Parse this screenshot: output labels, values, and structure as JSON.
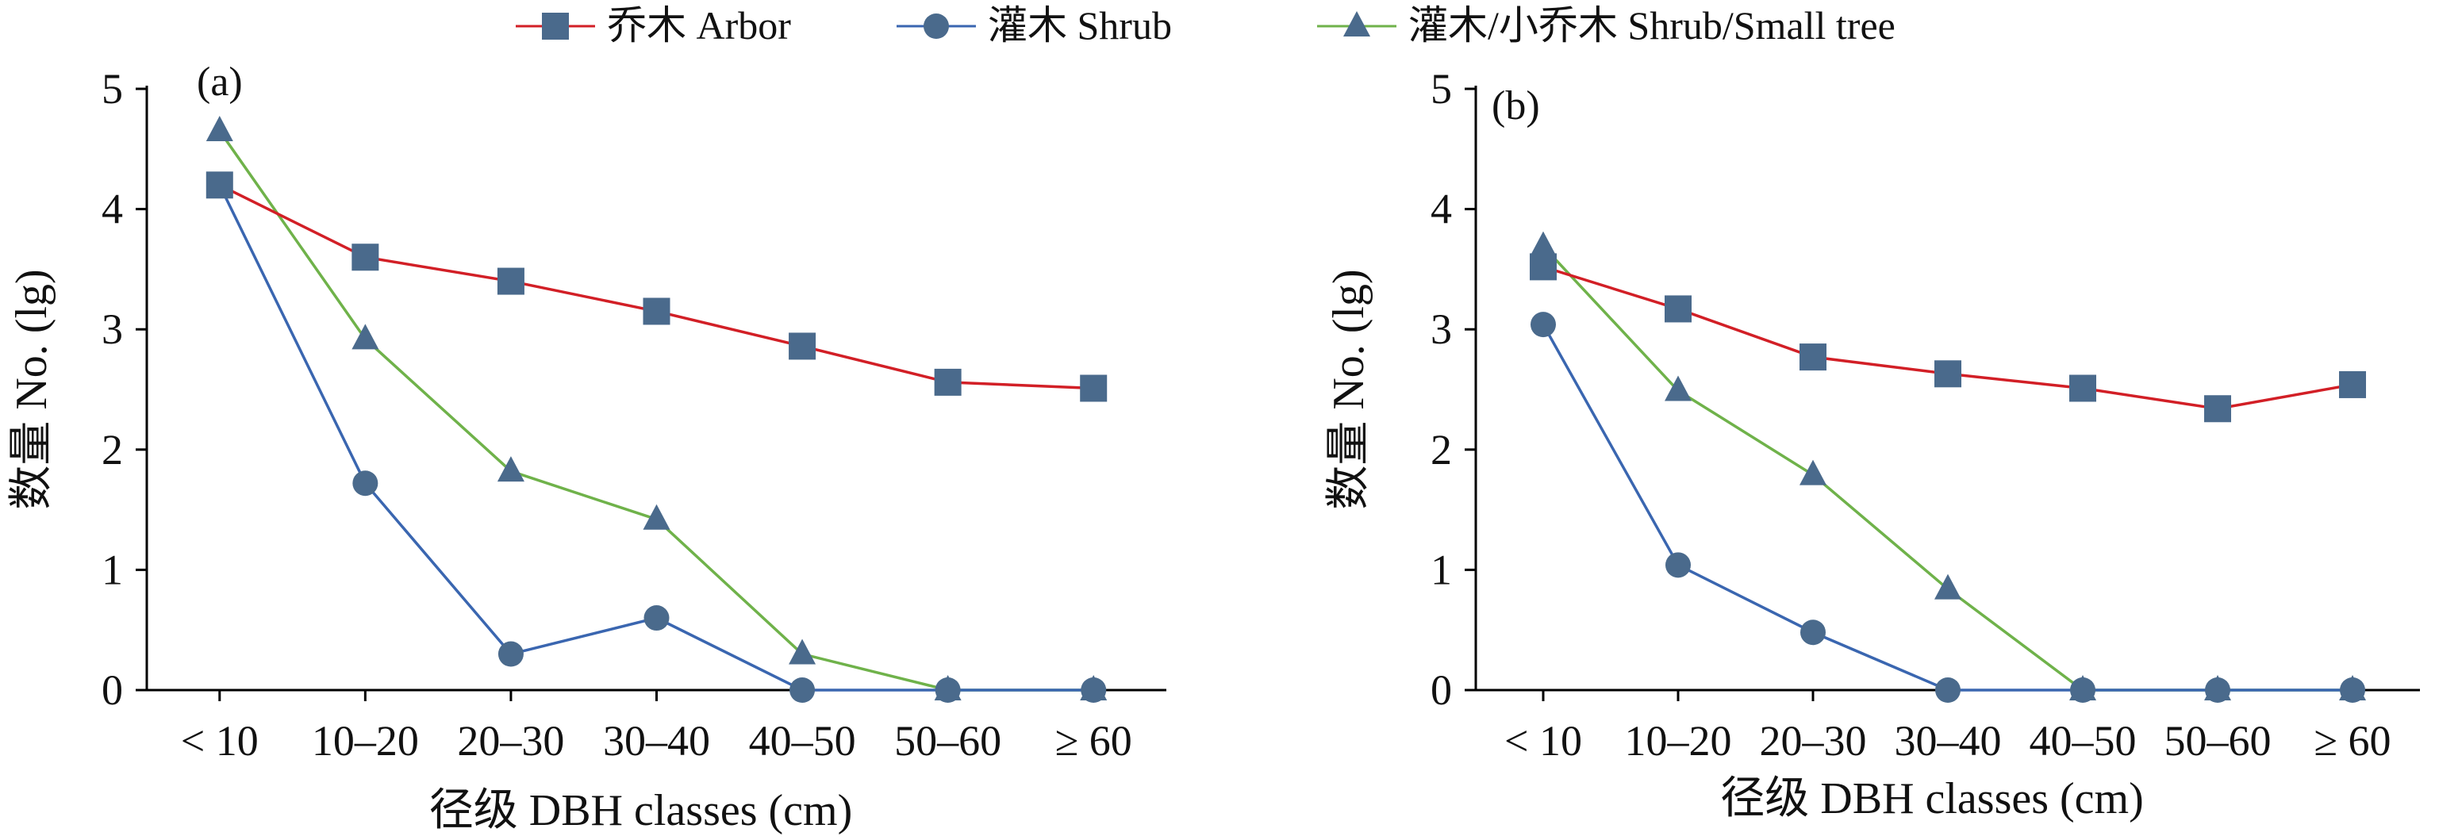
{
  "legend": [
    {
      "label": "乔木 Arbor",
      "color": "#d21f26",
      "marker": "square",
      "marker_color": "#4a6a8c"
    },
    {
      "label": "灌木 Shrub",
      "color": "#3a66b0",
      "marker": "circle",
      "marker_color": "#4a6a8c"
    },
    {
      "label": "灌木/小乔木 Shrub/Small tree",
      "color": "#6fb24a",
      "marker": "triangle",
      "marker_color": "#4a6a8c"
    }
  ],
  "chart_data": [
    {
      "panel": "(a)",
      "type": "line",
      "categories": [
        "< 10",
        "10–20",
        "20–30",
        "30–40",
        "40–50",
        "50–60",
        "≥ 60"
      ],
      "xlabel": "径级 DBH classes (cm)",
      "ylabel": "数量 No. (lg)",
      "ylim": [
        0,
        5
      ],
      "yticks": [
        "0",
        "1",
        "2",
        "3",
        "4",
        "5"
      ],
      "series": [
        {
          "name": "乔木 Arbor",
          "values": [
            4.2,
            3.6,
            3.4,
            3.15,
            2.86,
            2.56,
            2.51
          ]
        },
        {
          "name": "灌木 Shrub",
          "values": [
            4.2,
            1.72,
            0.3,
            0.6,
            0,
            0,
            0
          ]
        },
        {
          "name": "灌木/小乔木 Shrub/Small tree",
          "values": [
            4.65,
            2.92,
            1.82,
            1.42,
            0.3,
            0,
            0
          ]
        }
      ]
    },
    {
      "panel": "(b)",
      "type": "line",
      "categories": [
        "< 10",
        "10–20",
        "20–30",
        "30–40",
        "40–50",
        "50–60",
        "≥ 60"
      ],
      "xlabel": "径级 DBH classes (cm)",
      "ylabel": "数量 No. (lg)",
      "ylim": [
        0,
        5
      ],
      "yticks": [
        "0",
        "1",
        "2",
        "3",
        "4",
        "5"
      ],
      "series": [
        {
          "name": "乔木 Arbor",
          "values": [
            3.52,
            3.17,
            2.77,
            2.63,
            2.51,
            2.34,
            2.54
          ]
        },
        {
          "name": "灌木 Shrub",
          "values": [
            3.04,
            1.04,
            0.48,
            0,
            0,
            0,
            0
          ]
        },
        {
          "name": "灌木/小乔木 Shrub/Small tree",
          "values": [
            3.69,
            2.49,
            1.79,
            0.84,
            0,
            0,
            0
          ]
        }
      ]
    }
  ]
}
